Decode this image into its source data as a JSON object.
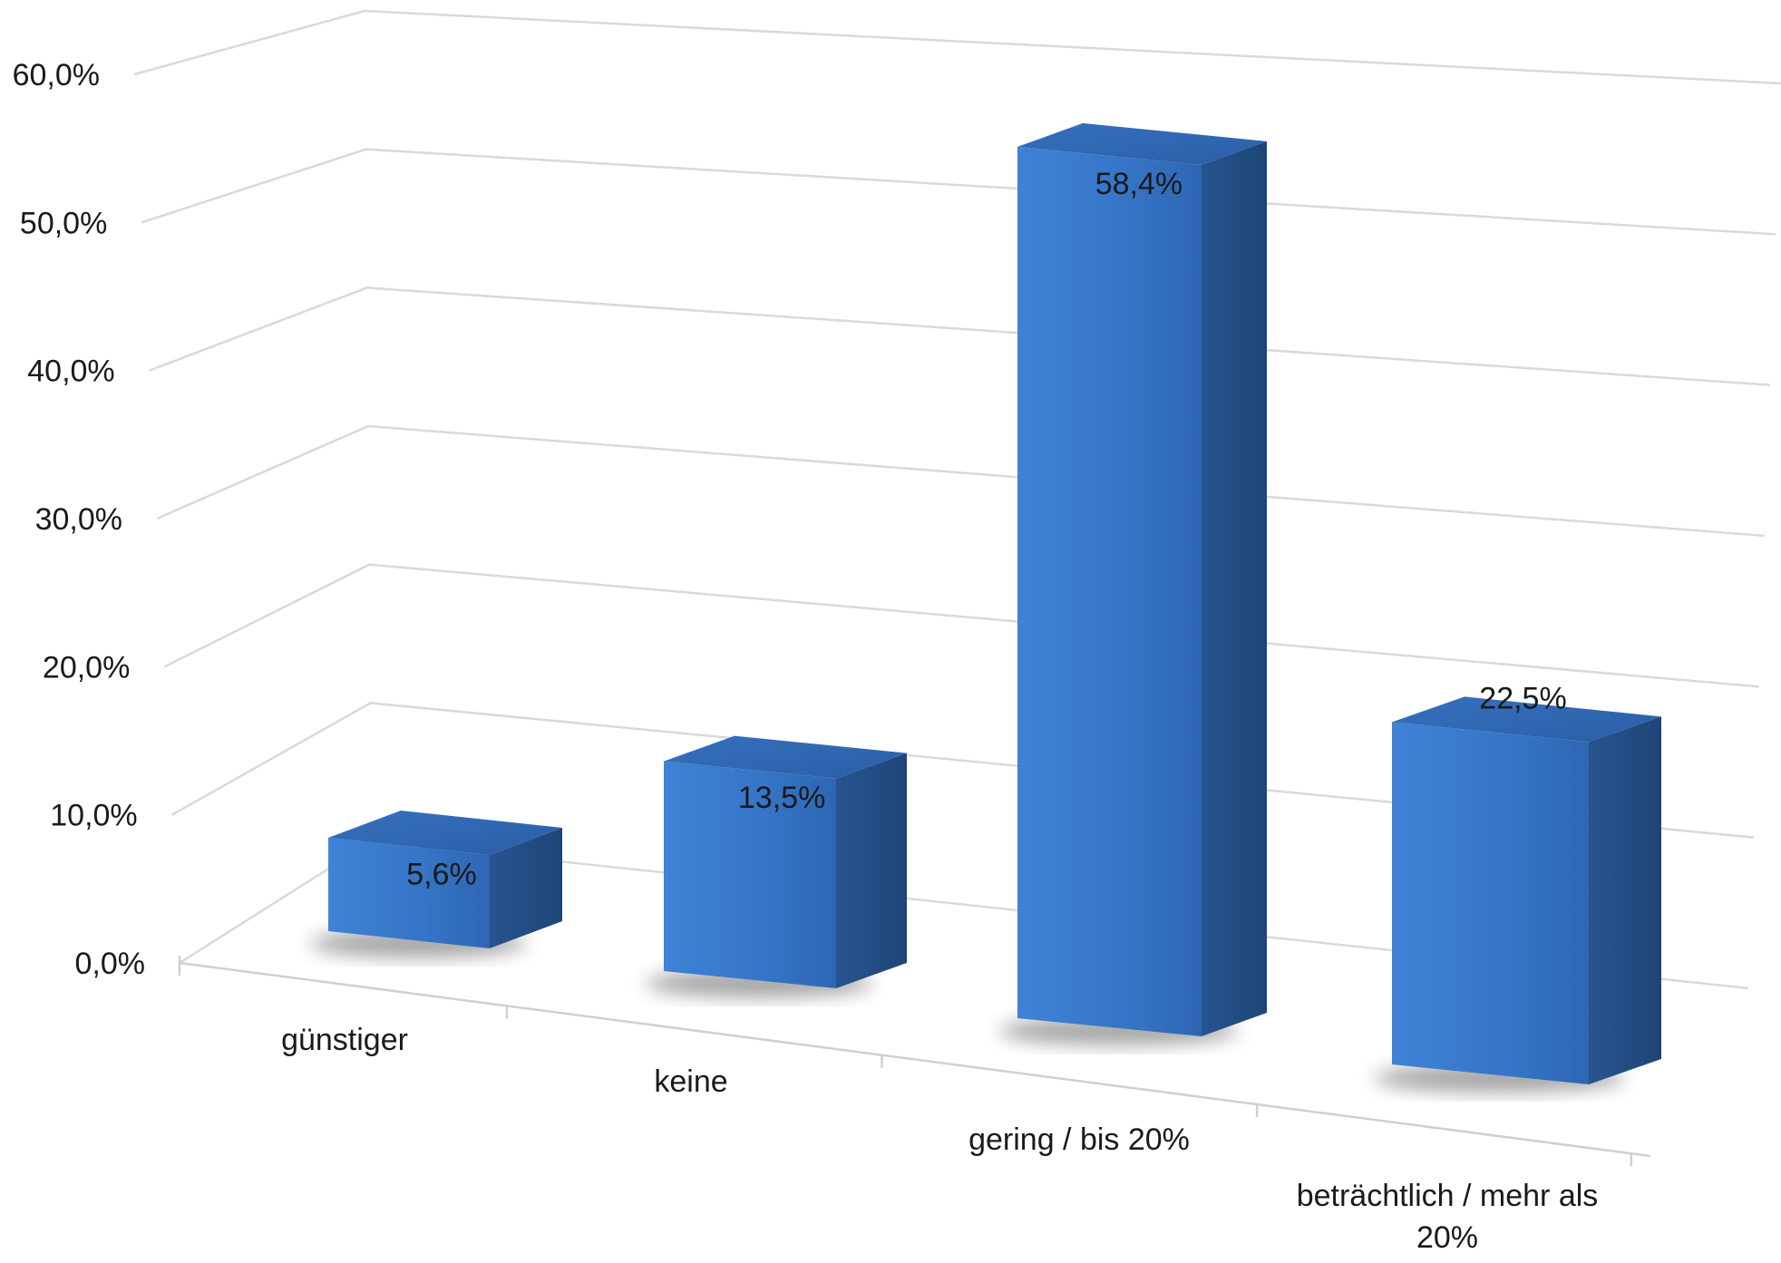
{
  "chart_data": {
    "type": "bar",
    "categories": [
      "günstiger",
      "keine",
      "gering / bis 20%",
      "beträchtlich / mehr als 20%"
    ],
    "category_lines": [
      [
        "günstiger"
      ],
      [
        "keine"
      ],
      [
        "gering / bis 20%"
      ],
      [
        "beträchtlich / mehr als",
        "20%"
      ]
    ],
    "values": [
      5.6,
      13.5,
      58.4,
      22.5
    ],
    "data_labels": [
      "5,6%",
      "13,5%",
      "58,4%",
      "22,5%"
    ],
    "y_ticks": [
      0,
      10,
      20,
      30,
      40,
      50,
      60
    ],
    "y_tick_labels": [
      "0,0%",
      "10,0%",
      "20,0%",
      "30,0%",
      "40,0%",
      "50,0%",
      "60,0%"
    ],
    "ylim": [
      0,
      60
    ],
    "three_d": true,
    "grid": true,
    "legend": "none",
    "colors": {
      "bar_front": "#3a7bd0",
      "bar_top": "#2f64ad",
      "bar_side": "#244c86",
      "gridline": "#d9d9d9"
    }
  }
}
